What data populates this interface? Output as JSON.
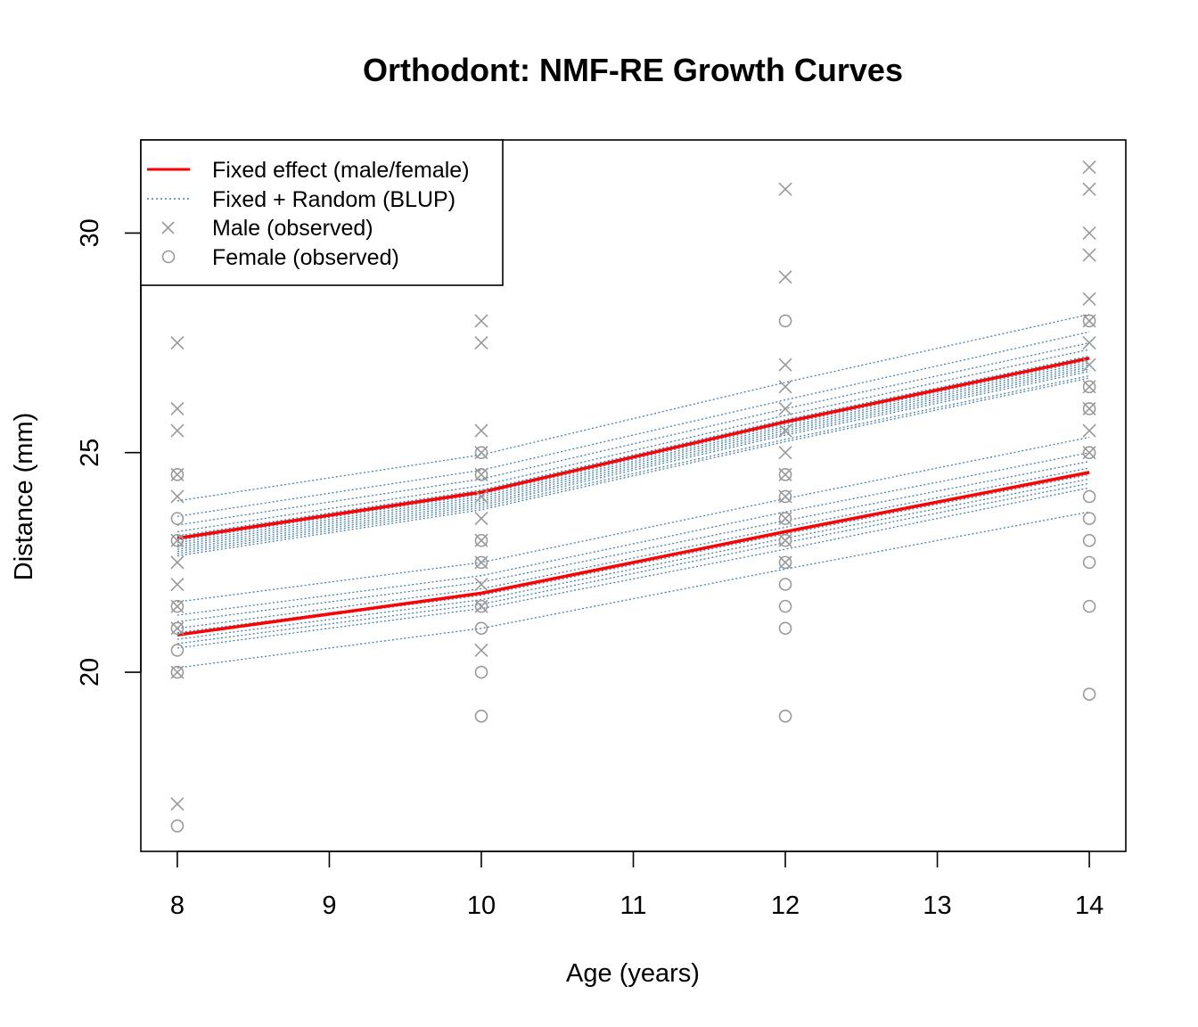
{
  "chart_data": {
    "type": "scatter",
    "title": "Orthodont: NMF-RE Growth Curves",
    "xlabel": "Age (years)",
    "ylabel": "Distance (mm)",
    "xlim": [
      7.76,
      14.24
    ],
    "ylim": [
      15.92,
      32.12
    ],
    "x_ticks": [
      8,
      9,
      10,
      11,
      12,
      13,
      14
    ],
    "y_ticks": [
      20,
      25,
      30
    ],
    "grid": false,
    "legend_position": "top-left",
    "colors": {
      "fixed": "#ff0000",
      "blup": "#4682b4",
      "observed": "#999999"
    },
    "legend": [
      {
        "label": "Fixed effect (male/female)",
        "style": "red-solid-line"
      },
      {
        "label": "Fixed + Random (BLUP)",
        "style": "steelblue-dotted-line"
      },
      {
        "label": "Male (observed)",
        "style": "gray-x"
      },
      {
        "label": "Female (observed)",
        "style": "gray-circle"
      }
    ],
    "fixed_effect_curves": [
      {
        "group": "male",
        "x": [
          8,
          10,
          12,
          14
        ],
        "y": [
          23.05,
          24.1,
          25.7,
          27.15
        ]
      },
      {
        "group": "female",
        "x": [
          8,
          10,
          12,
          14
        ],
        "y": [
          20.85,
          21.8,
          23.2,
          24.55
        ]
      }
    ],
    "blup_curves": [
      {
        "x": [
          8,
          10,
          12,
          14
        ],
        "y": [
          23.9,
          24.95,
          26.6,
          28.15
        ]
      },
      {
        "x": [
          8,
          10,
          12,
          14
        ],
        "y": [
          23.55,
          24.6,
          26.2,
          27.75
        ]
      },
      {
        "x": [
          8,
          10,
          12,
          14
        ],
        "y": [
          23.35,
          24.4,
          26.0,
          27.5
        ]
      },
      {
        "x": [
          8,
          10,
          12,
          14
        ],
        "y": [
          23.2,
          24.25,
          25.85,
          27.35
        ]
      },
      {
        "x": [
          8,
          10,
          12,
          14
        ],
        "y": [
          23.1,
          24.15,
          25.75,
          27.2
        ]
      },
      {
        "x": [
          8,
          10,
          12,
          14
        ],
        "y": [
          23.0,
          24.05,
          25.65,
          27.1
        ]
      },
      {
        "x": [
          8,
          10,
          12,
          14
        ],
        "y": [
          22.95,
          24.0,
          25.6,
          27.05
        ]
      },
      {
        "x": [
          8,
          10,
          12,
          14
        ],
        "y": [
          22.9,
          23.95,
          25.55,
          27.0
        ]
      },
      {
        "x": [
          8,
          10,
          12,
          14
        ],
        "y": [
          22.85,
          23.9,
          25.5,
          26.95
        ]
      },
      {
        "x": [
          8,
          10,
          12,
          14
        ],
        "y": [
          22.8,
          23.85,
          25.45,
          26.9
        ]
      },
      {
        "x": [
          8,
          10,
          12,
          14
        ],
        "y": [
          22.75,
          23.8,
          25.4,
          26.85
        ]
      },
      {
        "x": [
          8,
          10,
          12,
          14
        ],
        "y": [
          22.7,
          23.75,
          25.3,
          26.75
        ]
      },
      {
        "x": [
          8,
          10,
          12,
          14
        ],
        "y": [
          22.65,
          23.7,
          25.25,
          26.7
        ]
      },
      {
        "x": [
          8,
          10,
          12,
          14
        ],
        "y": [
          21.6,
          22.5,
          23.95,
          25.35
        ]
      },
      {
        "x": [
          8,
          10,
          12,
          14
        ],
        "y": [
          21.3,
          22.2,
          23.65,
          25.0
        ]
      },
      {
        "x": [
          8,
          10,
          12,
          14
        ],
        "y": [
          21.15,
          22.05,
          23.45,
          24.8
        ]
      },
      {
        "x": [
          8,
          10,
          12,
          14
        ],
        "y": [
          21.0,
          21.9,
          23.3,
          24.65
        ]
      },
      {
        "x": [
          8,
          10,
          12,
          14
        ],
        "y": [
          20.9,
          21.8,
          23.2,
          24.55
        ]
      },
      {
        "x": [
          8,
          10,
          12,
          14
        ],
        "y": [
          20.85,
          21.75,
          23.15,
          24.5
        ]
      },
      {
        "x": [
          8,
          10,
          12,
          14
        ],
        "y": [
          20.75,
          21.65,
          23.05,
          24.4
        ]
      },
      {
        "x": [
          8,
          10,
          12,
          14
        ],
        "y": [
          20.65,
          21.55,
          22.95,
          24.3
        ]
      },
      {
        "x": [
          8,
          10,
          12,
          14
        ],
        "y": [
          20.55,
          21.45,
          22.8,
          24.2
        ]
      },
      {
        "x": [
          8,
          10,
          12,
          14
        ],
        "y": [
          20.1,
          21.0,
          22.35,
          23.65
        ]
      }
    ],
    "male_observed": [
      {
        "x": 8,
        "y": 27.5
      },
      {
        "x": 8,
        "y": 26.0
      },
      {
        "x": 8,
        "y": 25.5
      },
      {
        "x": 8,
        "y": 24.5
      },
      {
        "x": 8,
        "y": 24.0
      },
      {
        "x": 8,
        "y": 23.0
      },
      {
        "x": 8,
        "y": 22.5
      },
      {
        "x": 8,
        "y": 22.0
      },
      {
        "x": 8,
        "y": 21.5
      },
      {
        "x": 8,
        "y": 21.0
      },
      {
        "x": 8,
        "y": 20.0
      },
      {
        "x": 8,
        "y": 17.0
      },
      {
        "x": 10,
        "y": 28.0
      },
      {
        "x": 10,
        "y": 27.5
      },
      {
        "x": 10,
        "y": 25.5
      },
      {
        "x": 10,
        "y": 25.0
      },
      {
        "x": 10,
        "y": 24.5
      },
      {
        "x": 10,
        "y": 24.0
      },
      {
        "x": 10,
        "y": 23.5
      },
      {
        "x": 10,
        "y": 23.0
      },
      {
        "x": 10,
        "y": 22.5
      },
      {
        "x": 10,
        "y": 22.0
      },
      {
        "x": 10,
        "y": 21.5
      },
      {
        "x": 10,
        "y": 20.5
      },
      {
        "x": 12,
        "y": 31.0
      },
      {
        "x": 12,
        "y": 29.0
      },
      {
        "x": 12,
        "y": 27.0
      },
      {
        "x": 12,
        "y": 26.5
      },
      {
        "x": 12,
        "y": 26.0
      },
      {
        "x": 12,
        "y": 25.5
      },
      {
        "x": 12,
        "y": 25.0
      },
      {
        "x": 12,
        "y": 24.5
      },
      {
        "x": 12,
        "y": 24.0
      },
      {
        "x": 12,
        "y": 23.5
      },
      {
        "x": 12,
        "y": 23.0
      },
      {
        "x": 12,
        "y": 22.5
      },
      {
        "x": 14,
        "y": 31.5
      },
      {
        "x": 14,
        "y": 31.0
      },
      {
        "x": 14,
        "y": 30.0
      },
      {
        "x": 14,
        "y": 29.5
      },
      {
        "x": 14,
        "y": 28.5
      },
      {
        "x": 14,
        "y": 28.0
      },
      {
        "x": 14,
        "y": 27.5
      },
      {
        "x": 14,
        "y": 27.0
      },
      {
        "x": 14,
        "y": 26.5
      },
      {
        "x": 14,
        "y": 26.0
      },
      {
        "x": 14,
        "y": 25.5
      },
      {
        "x": 14,
        "y": 25.0
      }
    ],
    "female_observed": [
      {
        "x": 8,
        "y": 24.5
      },
      {
        "x": 8,
        "y": 23.5
      },
      {
        "x": 8,
        "y": 23.0
      },
      {
        "x": 8,
        "y": 21.5
      },
      {
        "x": 8,
        "y": 21.0
      },
      {
        "x": 8,
        "y": 20.5
      },
      {
        "x": 8,
        "y": 20.0
      },
      {
        "x": 8,
        "y": 16.5
      },
      {
        "x": 10,
        "y": 25.0
      },
      {
        "x": 10,
        "y": 24.5
      },
      {
        "x": 10,
        "y": 23.0
      },
      {
        "x": 10,
        "y": 22.5
      },
      {
        "x": 10,
        "y": 21.5
      },
      {
        "x": 10,
        "y": 21.0
      },
      {
        "x": 10,
        "y": 20.0
      },
      {
        "x": 10,
        "y": 19.0
      },
      {
        "x": 12,
        "y": 28.0
      },
      {
        "x": 12,
        "y": 24.5
      },
      {
        "x": 12,
        "y": 24.0
      },
      {
        "x": 12,
        "y": 23.5
      },
      {
        "x": 12,
        "y": 23.0
      },
      {
        "x": 12,
        "y": 22.5
      },
      {
        "x": 12,
        "y": 22.0
      },
      {
        "x": 12,
        "y": 21.5
      },
      {
        "x": 12,
        "y": 21.0
      },
      {
        "x": 12,
        "y": 19.0
      },
      {
        "x": 14,
        "y": 28.0
      },
      {
        "x": 14,
        "y": 26.5
      },
      {
        "x": 14,
        "y": 26.0
      },
      {
        "x": 14,
        "y": 25.0
      },
      {
        "x": 14,
        "y": 24.0
      },
      {
        "x": 14,
        "y": 23.5
      },
      {
        "x": 14,
        "y": 23.0
      },
      {
        "x": 14,
        "y": 22.5
      },
      {
        "x": 14,
        "y": 21.5
      },
      {
        "x": 14,
        "y": 19.5
      }
    ]
  }
}
